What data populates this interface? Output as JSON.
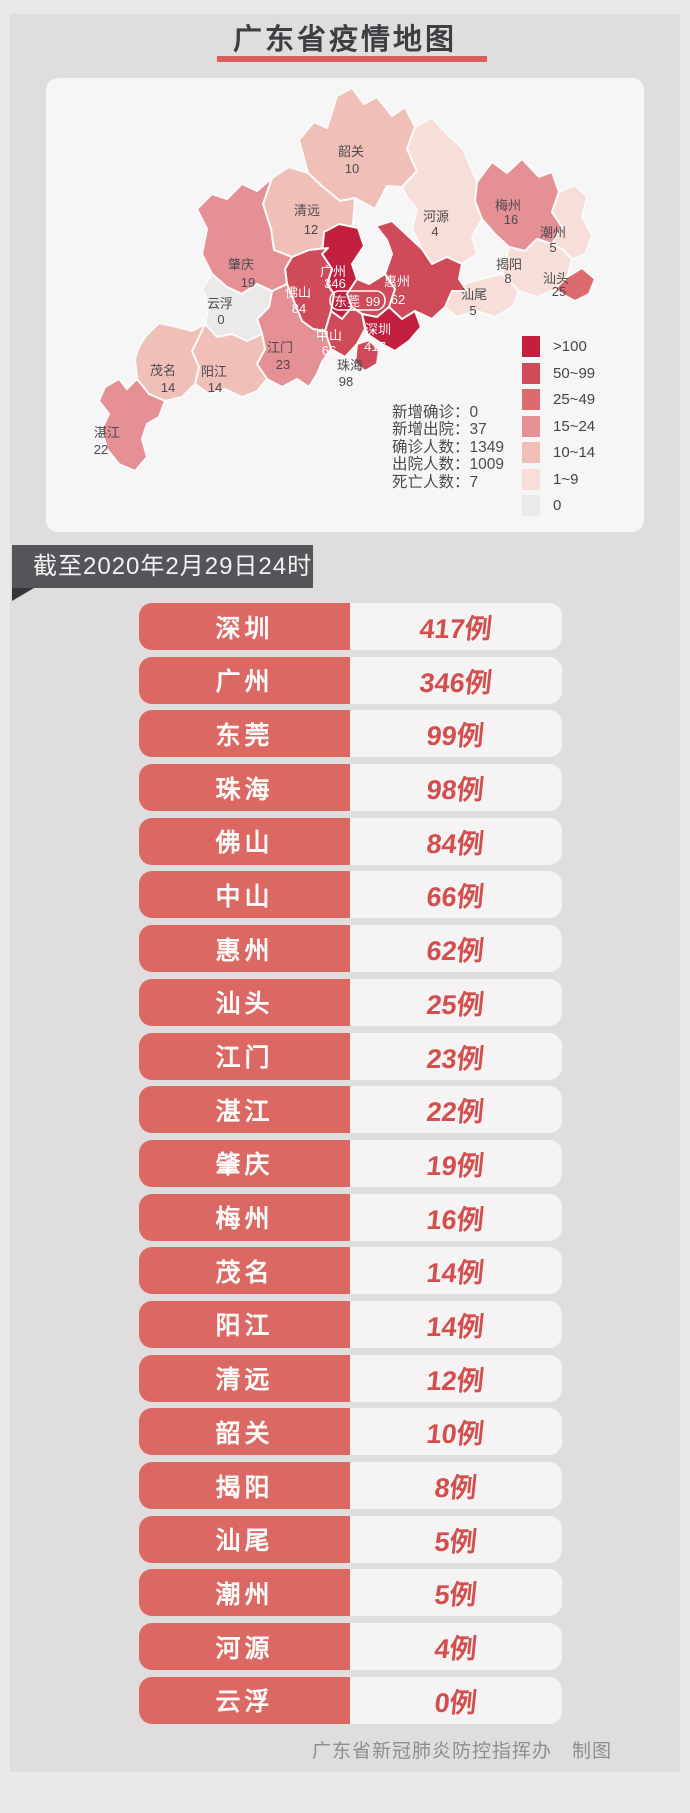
{
  "title": "广东省疫情地图",
  "banner": {
    "text": "截至2020年2月29日24时"
  },
  "footer": {
    "text": "广东省新冠肺炎防控指挥办　制图"
  },
  "colors": {
    "accent_red": "#d95e5e",
    "banner_bg": "#575459",
    "table_city_bg": "#dc6863",
    "table_value_text": "#d24f4e",
    "card_bg": "#f7f6f6"
  },
  "map_card": {
    "stats": [
      {
        "label": "新增确诊",
        "value": 0,
        "display": "新增确诊：0"
      },
      {
        "label": "新增出院",
        "value": 37,
        "display": "新增出院：37"
      },
      {
        "label": "确诊人数",
        "value": 1349,
        "display": "确诊人数：1349"
      },
      {
        "label": "出院人数",
        "value": 1009,
        "display": "出院人数：1009"
      },
      {
        "label": "死亡人数",
        "value": 7,
        "display": "死亡人数：7"
      }
    ],
    "legend": [
      {
        "label": ">100",
        "color": "#c32040"
      },
      {
        "label": "50~99",
        "color": "#d04b59"
      },
      {
        "label": "25~49",
        "color": "#db6b6e"
      },
      {
        "label": "15~24",
        "color": "#e59095"
      },
      {
        "label": "10~14",
        "color": "#f0bfb8"
      },
      {
        "label": "1~9",
        "color": "#f8ded9"
      },
      {
        "label": "0",
        "color": "#ebeae8"
      }
    ],
    "regions": [
      {
        "name": "韶关",
        "value": 10,
        "bucket": "10~14"
      },
      {
        "name": "清远",
        "value": 12,
        "bucket": "10~14"
      },
      {
        "name": "河源",
        "value": 4,
        "bucket": "1~9"
      },
      {
        "name": "梅州",
        "value": 16,
        "bucket": "15~24"
      },
      {
        "name": "潮州",
        "value": 5,
        "bucket": "1~9"
      },
      {
        "name": "揭阳",
        "value": 8,
        "bucket": "1~9"
      },
      {
        "name": "汕头",
        "value": 25,
        "bucket": "25~49"
      },
      {
        "name": "汕尾",
        "value": 5,
        "bucket": "1~9"
      },
      {
        "name": "惠州",
        "value": 62,
        "bucket": "50~99"
      },
      {
        "name": "广州",
        "value": 346,
        "bucket": ">100"
      },
      {
        "name": "东莞",
        "value": 99,
        "bucket": "50~99"
      },
      {
        "name": "深圳",
        "value": 417,
        "bucket": ">100"
      },
      {
        "name": "珠海",
        "value": 98,
        "bucket": "50~99"
      },
      {
        "name": "中山",
        "value": 66,
        "bucket": "50~99"
      },
      {
        "name": "佛山",
        "value": 84,
        "bucket": "50~99"
      },
      {
        "name": "江门",
        "value": 23,
        "bucket": "15~24"
      },
      {
        "name": "肇庆",
        "value": 19,
        "bucket": "15~24"
      },
      {
        "name": "云浮",
        "value": 0,
        "bucket": "0"
      },
      {
        "name": "阳江",
        "value": 14,
        "bucket": "10~14"
      },
      {
        "name": "茂名",
        "value": 14,
        "bucket": "10~14"
      },
      {
        "name": "湛江",
        "value": 22,
        "bucket": "15~24"
      }
    ]
  },
  "table": {
    "rows": [
      {
        "city": "深圳",
        "value": 417,
        "display": "417例"
      },
      {
        "city": "广州",
        "value": 346,
        "display": "346例"
      },
      {
        "city": "东莞",
        "value": 99,
        "display": "99例"
      },
      {
        "city": "珠海",
        "value": 98,
        "display": "98例"
      },
      {
        "city": "佛山",
        "value": 84,
        "display": "84例"
      },
      {
        "city": "中山",
        "value": 66,
        "display": "66例"
      },
      {
        "city": "惠州",
        "value": 62,
        "display": "62例"
      },
      {
        "city": "汕头",
        "value": 25,
        "display": "25例"
      },
      {
        "city": "江门",
        "value": 23,
        "display": "23例"
      },
      {
        "city": "湛江",
        "value": 22,
        "display": "22例"
      },
      {
        "city": "肇庆",
        "value": 19,
        "display": "19例"
      },
      {
        "city": "梅州",
        "value": 16,
        "display": "16例"
      },
      {
        "city": "茂名",
        "value": 14,
        "display": "14例"
      },
      {
        "city": "阳江",
        "value": 14,
        "display": "14例"
      },
      {
        "city": "清远",
        "value": 12,
        "display": "12例"
      },
      {
        "city": "韶关",
        "value": 10,
        "display": "10例"
      },
      {
        "city": "揭阳",
        "value": 8,
        "display": "8例"
      },
      {
        "city": "汕尾",
        "value": 5,
        "display": "5例"
      },
      {
        "city": "潮州",
        "value": 5,
        "display": "5例"
      },
      {
        "city": "河源",
        "value": 4,
        "display": "4例"
      },
      {
        "city": "云浮",
        "value": 0,
        "display": "0例"
      }
    ]
  },
  "chart_data": {
    "type": "choropleth",
    "title": "广东省疫情地图",
    "as_of": "截至2020年2月29日24时",
    "legend_buckets": [
      ">100",
      "50~99",
      "25~49",
      "15~24",
      "10~14",
      "1~9",
      "0"
    ],
    "data": [
      [
        "深圳",
        417
      ],
      [
        "广州",
        346
      ],
      [
        "东莞",
        99
      ],
      [
        "珠海",
        98
      ],
      [
        "佛山",
        84
      ],
      [
        "中山",
        66
      ],
      [
        "惠州",
        62
      ],
      [
        "汕头",
        25
      ],
      [
        "江门",
        23
      ],
      [
        "湛江",
        22
      ],
      [
        "肇庆",
        19
      ],
      [
        "梅州",
        16
      ],
      [
        "茂名",
        14
      ],
      [
        "阳江",
        14
      ],
      [
        "清远",
        12
      ],
      [
        "韶关",
        10
      ],
      [
        "揭阳",
        8
      ],
      [
        "汕尾",
        5
      ],
      [
        "潮州",
        5
      ],
      [
        "河源",
        4
      ],
      [
        "云浮",
        0
      ]
    ]
  }
}
